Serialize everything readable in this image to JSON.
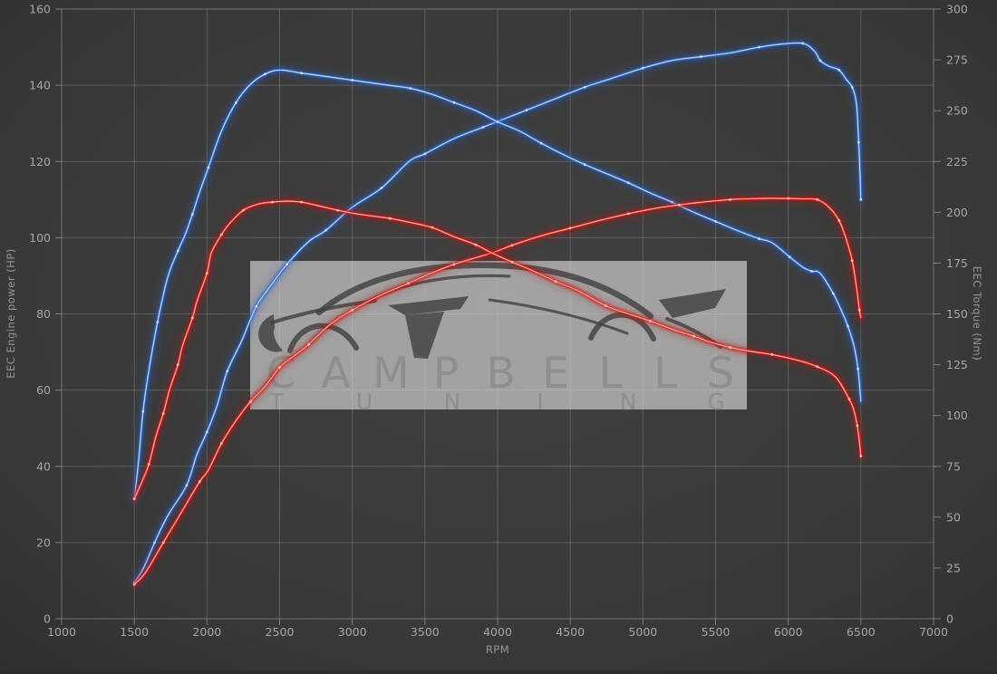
{
  "watermark": {
    "line1": "CAMPBELLS",
    "line2": "TUNING",
    "box_color": "#d2d2d2",
    "box_opacity": 0.68,
    "letter_color": "#8d8d8d",
    "car_color": "#424242"
  },
  "background": {
    "center": "#414141",
    "edge": "#2d2d2d"
  },
  "grid_color": "#909090",
  "label_color": "#a6a6a6",
  "axis_title_color": "#959595",
  "chart_data": {
    "type": "line",
    "title": "",
    "xlabel": "RPM",
    "ylabel_left": "EEC Engine power (HP)",
    "ylabel_right": "EEC Torque (Nm)",
    "x_range": [
      1000,
      7000
    ],
    "x_tick_step": 500,
    "x_ticks": [
      "1000",
      "1500",
      "2000",
      "2500",
      "3000",
      "3500",
      "4000",
      "4500",
      "5000",
      "5500",
      "6000",
      "6500",
      "7000"
    ],
    "y_left_range": [
      0,
      160
    ],
    "y_left_tick_step": 20,
    "y_left_ticks": [
      "0",
      "20",
      "40",
      "60",
      "80",
      "100",
      "120",
      "140",
      "160"
    ],
    "y_right_range": [
      0,
      300
    ],
    "y_right_tick_step": 25,
    "y_right_ticks": [
      "0",
      "25",
      "50",
      "75",
      "100",
      "125",
      "150",
      "175",
      "200",
      "225",
      "250",
      "275",
      "300"
    ],
    "grid": "on",
    "legend": "none",
    "series": [
      {
        "id": "blue-power",
        "axis": "left",
        "unit": "HP",
        "color_base": "#2a5fc0",
        "color_mid": "#4a86d8",
        "color_core": "#d8e9ff",
        "peak": {
          "rpm": 6100,
          "value": 151
        },
        "points": [
          [
            1500,
            9.5
          ],
          [
            1560,
            13
          ],
          [
            1640,
            20
          ],
          [
            1730,
            27
          ],
          [
            1860,
            35
          ],
          [
            1930,
            43
          ],
          [
            2000,
            49
          ],
          [
            2070,
            56
          ],
          [
            2140,
            65
          ],
          [
            2240,
            73
          ],
          [
            2340,
            82
          ],
          [
            2450,
            88
          ],
          [
            2550,
            93
          ],
          [
            2700,
            99
          ],
          [
            2820,
            102
          ],
          [
            3000,
            108
          ],
          [
            3200,
            113
          ],
          [
            3390,
            120
          ],
          [
            3500,
            122
          ],
          [
            3700,
            126
          ],
          [
            3900,
            129
          ],
          [
            4000,
            130.5
          ],
          [
            4200,
            133.5
          ],
          [
            4400,
            136.5
          ],
          [
            4600,
            139.5
          ],
          [
            4800,
            142
          ],
          [
            5000,
            144.5
          ],
          [
            5200,
            146.5
          ],
          [
            5400,
            147.5
          ],
          [
            5600,
            148.5
          ],
          [
            5800,
            150
          ],
          [
            5950,
            150.8
          ],
          [
            6100,
            151
          ],
          [
            6180,
            149
          ],
          [
            6220,
            146.5
          ],
          [
            6280,
            145
          ],
          [
            6350,
            144
          ],
          [
            6400,
            141.5
          ],
          [
            6440,
            139.5
          ],
          [
            6470,
            135
          ],
          [
            6485,
            125
          ],
          [
            6495,
            116
          ],
          [
            6500,
            110
          ]
        ]
      },
      {
        "id": "blue-torque",
        "axis": "right",
        "unit": "Nm",
        "color_base": "#2a5fc0",
        "color_mid": "#4a86d8",
        "color_core": "#d8e9ff",
        "peak": {
          "rpm": 2500,
          "value": 270
        },
        "points": [
          [
            1500,
            59
          ],
          [
            1530,
            78
          ],
          [
            1560,
            102
          ],
          [
            1600,
            122
          ],
          [
            1660,
            146
          ],
          [
            1730,
            168
          ],
          [
            1800,
            181
          ],
          [
            1850,
            189
          ],
          [
            1900,
            199
          ],
          [
            1950,
            210
          ],
          [
            2010,
            222
          ],
          [
            2100,
            240
          ],
          [
            2200,
            254
          ],
          [
            2300,
            263
          ],
          [
            2400,
            268
          ],
          [
            2500,
            270
          ],
          [
            2650,
            268.5
          ],
          [
            2800,
            267
          ],
          [
            3000,
            265
          ],
          [
            3200,
            263
          ],
          [
            3400,
            261
          ],
          [
            3550,
            258
          ],
          [
            3700,
            254
          ],
          [
            3850,
            250
          ],
          [
            4000,
            244.5
          ],
          [
            4150,
            240
          ],
          [
            4300,
            234
          ],
          [
            4450,
            228.5
          ],
          [
            4600,
            223.5
          ],
          [
            4750,
            219
          ],
          [
            4900,
            214.5
          ],
          [
            5050,
            209.5
          ],
          [
            5200,
            205
          ],
          [
            5350,
            200
          ],
          [
            5500,
            195.5
          ],
          [
            5650,
            191
          ],
          [
            5800,
            187
          ],
          [
            5890,
            185
          ],
          [
            6010,
            178
          ],
          [
            6100,
            173
          ],
          [
            6160,
            171
          ],
          [
            6220,
            170
          ],
          [
            6310,
            160
          ],
          [
            6370,
            151
          ],
          [
            6410,
            144
          ],
          [
            6450,
            135
          ],
          [
            6480,
            123
          ],
          [
            6500,
            107
          ]
        ]
      },
      {
        "id": "red-power",
        "axis": "left",
        "unit": "HP",
        "color_base": "#c01414",
        "color_mid": "#e03226",
        "color_core": "#ffd2c8",
        "peak": {
          "rpm": 5900,
          "value": 110.3
        },
        "points": [
          [
            1500,
            9
          ],
          [
            1575,
            12
          ],
          [
            1700,
            20
          ],
          [
            1825,
            28
          ],
          [
            1950,
            36
          ],
          [
            2010,
            39
          ],
          [
            2100,
            46
          ],
          [
            2200,
            52
          ],
          [
            2300,
            57
          ],
          [
            2400,
            61
          ],
          [
            2500,
            66
          ],
          [
            2600,
            69
          ],
          [
            2700,
            72
          ],
          [
            2840,
            77
          ],
          [
            3000,
            81
          ],
          [
            3200,
            85
          ],
          [
            3385,
            88
          ],
          [
            3500,
            90
          ],
          [
            3700,
            93
          ],
          [
            3960,
            96
          ],
          [
            4100,
            98
          ],
          [
            4300,
            100.5
          ],
          [
            4500,
            102.5
          ],
          [
            4700,
            104.5
          ],
          [
            4900,
            106.3
          ],
          [
            5100,
            107.8
          ],
          [
            5250,
            108.6
          ],
          [
            5400,
            109.3
          ],
          [
            5600,
            110
          ],
          [
            5800,
            110.3
          ],
          [
            6000,
            110.3
          ],
          [
            6100,
            110.2
          ],
          [
            6200,
            110
          ],
          [
            6280,
            108
          ],
          [
            6350,
            104.5
          ],
          [
            6400,
            99.5
          ],
          [
            6440,
            94
          ],
          [
            6470,
            87
          ],
          [
            6490,
            81
          ],
          [
            6500,
            79
          ]
        ]
      },
      {
        "id": "red-torque",
        "axis": "right",
        "unit": "Nm",
        "color_base": "#c01414",
        "color_mid": "#e03226",
        "color_core": "#ffd2c8",
        "peak": {
          "rpm": 2550,
          "value": 205.5
        },
        "points": [
          [
            1500,
            59
          ],
          [
            1550,
            67
          ],
          [
            1600,
            76
          ],
          [
            1650,
            90
          ],
          [
            1700,
            101
          ],
          [
            1740,
            112
          ],
          [
            1800,
            125
          ],
          [
            1835,
            135
          ],
          [
            1900,
            148
          ],
          [
            1935,
            157
          ],
          [
            2000,
            170
          ],
          [
            2030,
            180
          ],
          [
            2100,
            189
          ],
          [
            2150,
            194
          ],
          [
            2250,
            201
          ],
          [
            2350,
            204
          ],
          [
            2450,
            205
          ],
          [
            2550,
            205.5
          ],
          [
            2650,
            205
          ],
          [
            2750,
            203.5
          ],
          [
            2900,
            201
          ],
          [
            3050,
            199
          ],
          [
            3260,
            197
          ],
          [
            3400,
            195
          ],
          [
            3550,
            192.5
          ],
          [
            3700,
            188
          ],
          [
            3850,
            184
          ],
          [
            3960,
            180
          ],
          [
            4100,
            175.5
          ],
          [
            4250,
            171
          ],
          [
            4400,
            166
          ],
          [
            4550,
            161.5
          ],
          [
            4745,
            154
          ],
          [
            4900,
            150
          ],
          [
            5050,
            146.5
          ],
          [
            5200,
            142.5
          ],
          [
            5350,
            139
          ],
          [
            5470,
            136
          ],
          [
            5600,
            133.5
          ],
          [
            5750,
            131.5
          ],
          [
            5890,
            130
          ],
          [
            6075,
            127
          ],
          [
            6200,
            124
          ],
          [
            6325,
            119
          ],
          [
            6420,
            108
          ],
          [
            6450,
            103
          ],
          [
            6475,
            95
          ],
          [
            6490,
            87
          ],
          [
            6500,
            80
          ]
        ]
      }
    ]
  }
}
